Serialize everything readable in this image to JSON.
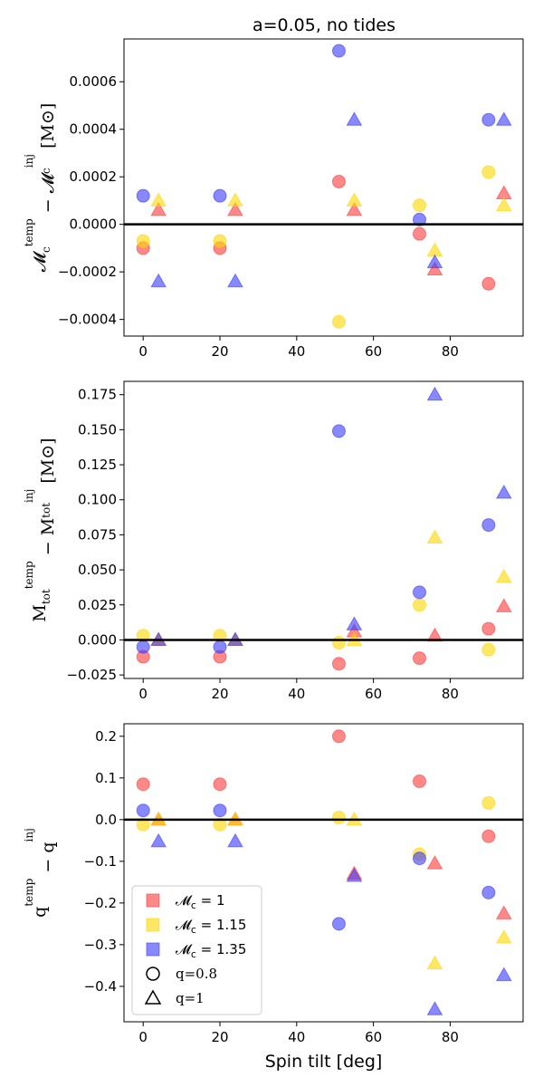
{
  "figure_title": "a=0.05, no tides",
  "colors": {
    "red": "#ff3b3b",
    "yellow": "#ffd700",
    "blue": "#3a3aff",
    "zero_line": "#000000"
  },
  "chart_data": [
    {
      "type": "scatter",
      "panel": "top",
      "title": "a=0.05, no tides",
      "xlabel": "",
      "ylabel_parts": {
        "main": "𝓜",
        "sub": "c",
        "sup": "temp",
        "minus": " − 𝓜",
        "sub2": "c",
        "sup2": "inj",
        "unit": " [M⊙]"
      },
      "xlim": [
        -5,
        99
      ],
      "ylim": [
        -0.00047,
        0.00078
      ],
      "xticks": [
        0,
        20,
        40,
        60,
        80
      ],
      "xtick_labels": [
        "0",
        "20",
        "40",
        "60",
        "80"
      ],
      "yticks": [
        -0.0004,
        -0.0002,
        0.0,
        0.0002,
        0.0004,
        0.0006
      ],
      "ytick_labels": [
        "−0.0004",
        "−0.0002",
        "0.0000",
        "0.0002",
        "0.0004",
        "0.0006"
      ],
      "series": [
        {
          "name": "Mc=1, q=0.8",
          "color": "red",
          "marker": "circle",
          "x": [
            0,
            20,
            51,
            72,
            90
          ],
          "y": [
            -0.0001,
            -0.0001,
            0.00018,
            -4e-05,
            -0.00025
          ]
        },
        {
          "name": "Mc=1.15, q=0.8",
          "color": "yellow",
          "marker": "circle",
          "x": [
            0,
            20,
            51,
            72,
            90
          ],
          "y": [
            -7e-05,
            -7e-05,
            -0.00041,
            8e-05,
            0.00022
          ]
        },
        {
          "name": "Mc=1.35, q=0.8",
          "color": "blue",
          "marker": "circle",
          "x": [
            0,
            20,
            51,
            72,
            90
          ],
          "y": [
            0.00012,
            0.00012,
            0.00073,
            2e-05,
            0.00044
          ]
        },
        {
          "name": "Mc=1, q=1",
          "color": "red",
          "marker": "triangle",
          "x": [
            4,
            24,
            55,
            76,
            94
          ],
          "y": [
            6e-05,
            6e-05,
            6e-05,
            -0.00019,
            0.00013
          ]
        },
        {
          "name": "Mc=1.15, q=1",
          "color": "yellow",
          "marker": "triangle",
          "x": [
            4,
            24,
            55,
            76,
            94
          ],
          "y": [
            0.0001,
            0.0001,
            0.0001,
            -0.00011,
            8e-05
          ]
        },
        {
          "name": "Mc=1.35, q=1",
          "color": "blue",
          "marker": "triangle",
          "x": [
            4,
            24,
            55,
            76,
            94
          ],
          "y": [
            -0.00024,
            -0.00024,
            0.00044,
            -0.00016,
            0.00044
          ]
        }
      ]
    },
    {
      "type": "scatter",
      "panel": "middle",
      "title": "",
      "xlabel": "",
      "ylabel_parts": {
        "main": "M",
        "sub": "tot",
        "sup": "temp",
        "minus": " − M",
        "sub2": "tot",
        "sup2": "inj",
        "unit": " [M⊙]"
      },
      "xlim": [
        -5,
        99
      ],
      "ylim": [
        -0.0275,
        0.1845
      ],
      "xticks": [
        0,
        20,
        40,
        60,
        80
      ],
      "xtick_labels": [
        "0",
        "20",
        "40",
        "60",
        "80"
      ],
      "yticks": [
        -0.025,
        0.0,
        0.025,
        0.05,
        0.075,
        0.1,
        0.125,
        0.15,
        0.175
      ],
      "ytick_labels": [
        "−0.025",
        "0.000",
        "0.025",
        "0.050",
        "0.075",
        "0.100",
        "0.125",
        "0.150",
        "0.175"
      ],
      "series": [
        {
          "name": "Mc=1, q=0.8",
          "color": "red",
          "marker": "circle",
          "x": [
            0,
            20,
            51,
            72,
            90
          ],
          "y": [
            -0.012,
            -0.012,
            -0.017,
            -0.013,
            0.008
          ]
        },
        {
          "name": "Mc=1.15, q=0.8",
          "color": "yellow",
          "marker": "circle",
          "x": [
            0,
            20,
            51,
            72,
            90
          ],
          "y": [
            0.003,
            0.003,
            -0.002,
            0.025,
            -0.007
          ]
        },
        {
          "name": "Mc=1.35, q=0.8",
          "color": "blue",
          "marker": "circle",
          "x": [
            0,
            20,
            51,
            72,
            90
          ],
          "y": [
            -0.005,
            -0.005,
            0.149,
            0.034,
            0.082
          ]
        },
        {
          "name": "Mc=1, q=1",
          "color": "red",
          "marker": "triangle",
          "x": [
            4,
            24,
            55,
            76,
            94
          ],
          "y": [
            0.0,
            0.0,
            0.006,
            0.003,
            0.024
          ]
        },
        {
          "name": "Mc=1.15, q=1",
          "color": "yellow",
          "marker": "triangle",
          "x": [
            4,
            24,
            55,
            76,
            94
          ],
          "y": [
            0.0,
            0.0,
            0.0,
            0.073,
            0.045
          ]
        },
        {
          "name": "Mc=1.35, q=1",
          "color": "blue",
          "marker": "triangle",
          "x": [
            4,
            24,
            55,
            76,
            94
          ],
          "y": [
            0.0,
            0.0,
            0.011,
            0.175,
            0.105
          ]
        }
      ]
    },
    {
      "type": "scatter",
      "panel": "bottom",
      "title": "",
      "xlabel": "Spin tilt [deg]",
      "ylabel_parts": {
        "main": "q",
        "sub": "",
        "sup": "temp",
        "minus": " − q",
        "sub2": "",
        "sup2": "inj",
        "unit": ""
      },
      "xlim": [
        -5,
        99
      ],
      "ylim": [
        -0.485,
        0.23
      ],
      "xticks": [
        0,
        20,
        40,
        60,
        80
      ],
      "xtick_labels": [
        "0",
        "20",
        "40",
        "60",
        "80"
      ],
      "yticks": [
        -0.4,
        -0.3,
        -0.2,
        -0.1,
        0.0,
        0.1,
        0.2
      ],
      "ytick_labels": [
        "−0.4",
        "−0.3",
        "−0.2",
        "−0.1",
        "0.0",
        "0.1",
        "0.2"
      ],
      "series": [
        {
          "name": "Mc=1, q=0.8",
          "color": "red",
          "marker": "circle",
          "x": [
            0,
            20,
            51,
            72,
            90
          ],
          "y": [
            0.085,
            0.085,
            0.2,
            0.092,
            -0.04
          ]
        },
        {
          "name": "Mc=1.15, q=0.8",
          "color": "yellow",
          "marker": "circle",
          "x": [
            0,
            20,
            51,
            72,
            90
          ],
          "y": [
            -0.012,
            -0.012,
            0.005,
            -0.083,
            0.04
          ]
        },
        {
          "name": "Mc=1.35, q=0.8",
          "color": "blue",
          "marker": "circle",
          "x": [
            0,
            20,
            51,
            72,
            90
          ],
          "y": [
            0.022,
            0.022,
            -0.25,
            -0.093,
            -0.175
          ]
        },
        {
          "name": "Mc=1, q=1",
          "color": "red",
          "marker": "triangle",
          "x": [
            4,
            24,
            55,
            76,
            94
          ],
          "y": [
            0.0,
            0.0,
            -0.13,
            -0.105,
            -0.225
          ]
        },
        {
          "name": "Mc=1.15, q=1",
          "color": "yellow",
          "marker": "triangle",
          "x": [
            4,
            24,
            55,
            76,
            94
          ],
          "y": [
            0.0,
            0.0,
            0.0,
            -0.345,
            -0.283
          ]
        },
        {
          "name": "Mc=1.35, q=1",
          "color": "blue",
          "marker": "triangle",
          "x": [
            4,
            24,
            55,
            76,
            94
          ],
          "y": [
            -0.052,
            -0.052,
            -0.135,
            -0.455,
            -0.373
          ]
        }
      ]
    }
  ],
  "legend": {
    "location": "lower-left of bottom panel",
    "entries": [
      {
        "label_main": "𝓜",
        "label_sub": "c",
        "label_rest": " = 1",
        "color": "red",
        "marker": "square"
      },
      {
        "label_main": "𝓜",
        "label_sub": "c",
        "label_rest": " = 1.15",
        "color": "yellow",
        "marker": "square"
      },
      {
        "label_main": "𝓜",
        "label_sub": "c",
        "label_rest": " = 1.35",
        "color": "blue",
        "marker": "square"
      },
      {
        "label_main": "q=0.8",
        "label_sub": "",
        "label_rest": "",
        "color": "none",
        "marker": "circle"
      },
      {
        "label_main": "q=1",
        "label_sub": "",
        "label_rest": "",
        "color": "none",
        "marker": "triangle"
      }
    ]
  }
}
